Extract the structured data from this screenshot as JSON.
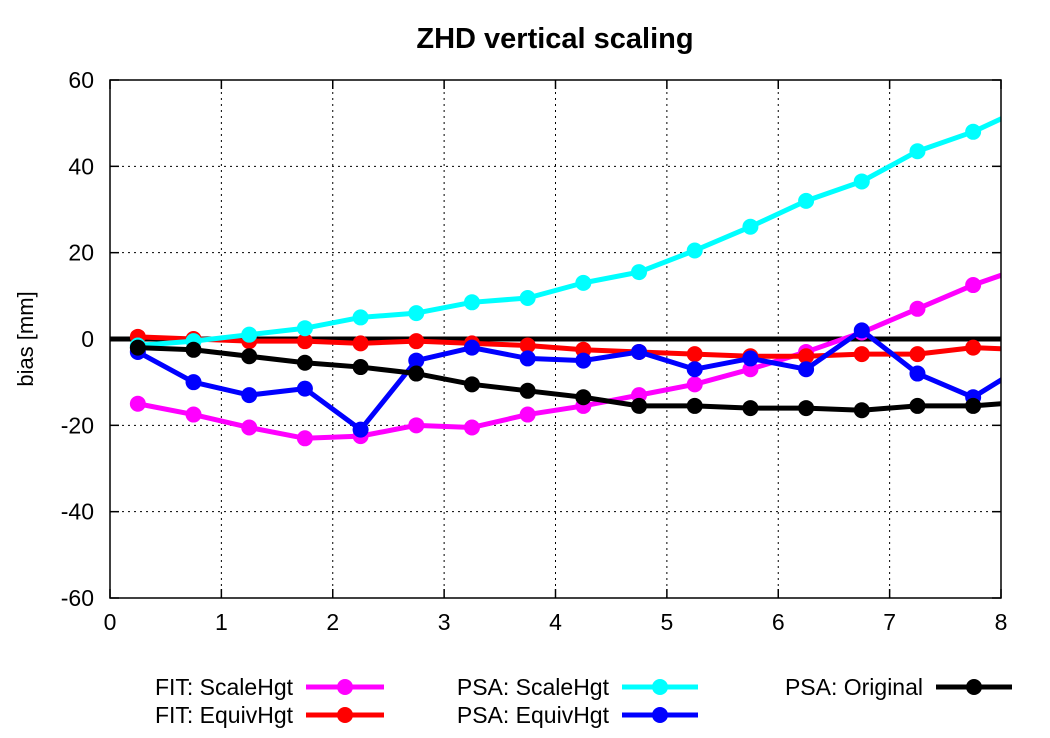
{
  "chart_data": {
    "type": "line",
    "title": "ZHD vertical scaling",
    "xlabel": "",
    "ylabel": "bias [mm]",
    "xlim": [
      0,
      8
    ],
    "ylim": [
      -60,
      60
    ],
    "x_ticks": [
      "0",
      "1",
      "2",
      "3",
      "4",
      "5",
      "6",
      "7",
      "8"
    ],
    "y_ticks": [
      "-60",
      "-40",
      "-20",
      "0",
      "20",
      "40",
      "60"
    ],
    "grid": true,
    "legend_position": "bottom",
    "x": [
      0.25,
      0.75,
      1.25,
      1.75,
      2.25,
      2.75,
      3.25,
      3.75,
      4.25,
      4.75,
      5.25,
      5.75,
      6.25,
      6.75,
      7.25,
      7.75,
      8.25
    ],
    "series": [
      {
        "name": "FIT: ScaleHgt",
        "color": "#ff00ff",
        "values": [
          -15,
          -17.5,
          -20.5,
          -23,
          -22.5,
          -20,
          -20.5,
          -17.5,
          -15.5,
          -13,
          -10.5,
          -7,
          -3,
          1.5,
          7,
          12.5,
          17
        ]
      },
      {
        "name": "FIT: EquivHgt",
        "color": "#ff0000",
        "values": [
          0.5,
          0,
          -0.5,
          -0.5,
          -1,
          -0.5,
          -1,
          -1.5,
          -2.5,
          -3,
          -3.5,
          -4,
          -4,
          -3.5,
          -3.5,
          -2,
          -2.5
        ]
      },
      {
        "name": "PSA: ScaleHgt",
        "color": "#00ffff",
        "values": [
          -1.5,
          -0.5,
          1,
          2.5,
          5,
          6,
          8.5,
          9.5,
          13,
          15.5,
          20.5,
          26,
          32,
          36.5,
          43.5,
          48,
          54
        ]
      },
      {
        "name": "PSA: EquivHgt",
        "color": "#0000ff",
        "values": [
          -3,
          -10,
          -13,
          -11.5,
          -21,
          -5,
          -2,
          -4.5,
          -5,
          -3,
          -7,
          -4.5,
          -7,
          2,
          -8,
          -13.5,
          -5.5
        ]
      },
      {
        "name": "PSA: Original",
        "color": "#000000",
        "values": [
          -2,
          -2.5,
          -4,
          -5.5,
          -6.5,
          -8,
          -10.5,
          -12,
          -13.5,
          -15.5,
          -15.5,
          -16,
          -16,
          -16.5,
          -15.5,
          -15.5,
          -14.5
        ]
      }
    ]
  }
}
